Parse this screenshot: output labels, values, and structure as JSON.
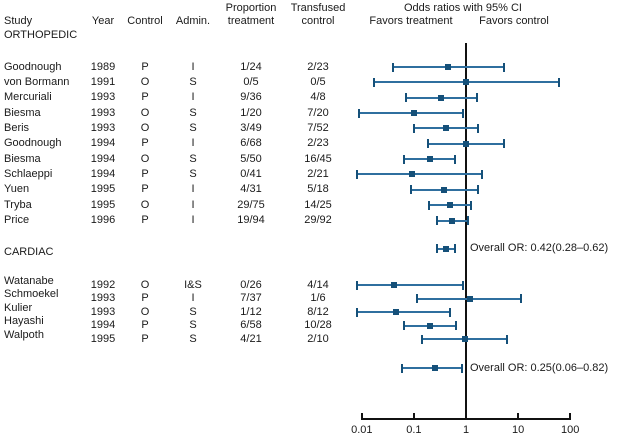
{
  "table_header": {
    "study": "Study",
    "year": "Year",
    "control": "Control",
    "admin": "Admin.",
    "prop_line1": "Proportion",
    "prop_line2": "treatment",
    "transf_line1": "Transfused",
    "transf_line2": "control",
    "or_title": "Odds ratios with 95% CI",
    "favors_left": "Favors treatment",
    "favors_right": "Favors control"
  },
  "colors": {
    "ci_line": "#2f6f9f",
    "marker": "#155079",
    "axis": "#111111",
    "text": "#1a1a1a"
  },
  "chart_data": {
    "type": "scatter",
    "subtype": "forest-plot",
    "title": "Odds ratios with 95% CI",
    "x_axis": {
      "scale": "log",
      "tick_values": [
        0.01,
        0.1,
        1,
        10,
        100
      ],
      "tick_labels": [
        "0.01",
        "0.1",
        "1",
        "10",
        "100"
      ],
      "reference_line": 1,
      "left_label": "Favors treatment",
      "right_label": "Favors control"
    },
    "groups": [
      {
        "label": "ORTHOPEDIC",
        "rows": [
          {
            "study": "Goodnough",
            "year": "1989",
            "control": "P",
            "admin": "I",
            "prop": "1/24",
            "transf": "2/23",
            "or": 0.46,
            "ci": [
              0.039,
              5.4
            ]
          },
          {
            "study": "von Bormann",
            "year": "1991",
            "control": "O",
            "admin": "S",
            "prop": "0/5",
            "transf": "0/5",
            "or": 1.0,
            "ci": [
              0.017,
              60
            ]
          },
          {
            "study": "Mercuriali",
            "year": "1993",
            "control": "P",
            "admin": "I",
            "prop": "9/36",
            "transf": "4/8",
            "or": 0.33,
            "ci": [
              0.069,
              1.62
            ]
          },
          {
            "study": "Biesma",
            "year": "1993",
            "control": "O",
            "admin": "S",
            "prop": "1/20",
            "transf": "7/20",
            "or": 0.1,
            "ci": [
              0.009,
              0.89
            ]
          },
          {
            "study": "Beris",
            "year": "1993",
            "control": "O",
            "admin": "S",
            "prop": "3/49",
            "transf": "7/52",
            "or": 0.42,
            "ci": [
              0.1,
              1.72
            ]
          },
          {
            "study": "Goodnough",
            "year": "1994",
            "control": "P",
            "admin": "I",
            "prop": "6/68",
            "transf": "2/23",
            "or": 1.02,
            "ci": [
              0.19,
              5.4
            ]
          },
          {
            "study": "Biesma",
            "year": "1994",
            "control": "O",
            "admin": "S",
            "prop": "5/50",
            "transf": "16/45",
            "or": 0.2,
            "ci": [
              0.066,
              0.61
            ]
          },
          {
            "study": "Schlaeppi",
            "year": "1994",
            "control": "P",
            "admin": "S",
            "prop": "0/41",
            "transf": "2/21",
            "or": 0.094,
            "ci": [
              0.008,
              2.05
            ]
          },
          {
            "study": "Yuen",
            "year": "1995",
            "control": "P",
            "admin": "I",
            "prop": "4/31",
            "transf": "5/18",
            "or": 0.385,
            "ci": [
              0.088,
              1.68
            ]
          },
          {
            "study": "Tryba",
            "year": "1995",
            "control": "O",
            "admin": "I",
            "prop": "29/75",
            "transf": "14/25",
            "or": 0.495,
            "ci": [
              0.198,
              1.24
            ]
          },
          {
            "study": "Price",
            "year": "1996",
            "control": "P",
            "admin": "I",
            "prop": "19/94",
            "transf": "29/92",
            "or": 0.55,
            "ci": [
              0.28,
              1.07
            ]
          }
        ],
        "overall": {
          "label": "Overall OR: 0.42(0.28–0.62)",
          "or": 0.42,
          "ci": [
            0.28,
            0.62
          ]
        }
      },
      {
        "label": "CARDIAC",
        "rows": [
          {
            "study": "Watanabe",
            "year": "1992",
            "control": "O",
            "admin": "I&S",
            "prop": "0/26",
            "transf": "4/14",
            "or": 0.042,
            "ci": [
              0.008,
              0.89
            ]
          },
          {
            "study": "Schmoekel",
            "year": "1993",
            "control": "P",
            "admin": "I",
            "prop": "7/37",
            "transf": "1/6",
            "or": 1.17,
            "ci": [
              0.117,
              11.6
            ]
          },
          {
            "study": "Kulier",
            "year": "1993",
            "control": "O",
            "admin": "S",
            "prop": "1/12",
            "transf": "8/12",
            "or": 0.045,
            "ci": [
              0.008,
              0.49
            ]
          },
          {
            "study": "Hayashi",
            "year": "1994",
            "control": "P",
            "admin": "S",
            "prop": "6/58",
            "transf": "10/28",
            "or": 0.208,
            "ci": [
              0.066,
              0.65
            ]
          },
          {
            "study": "Walpoth",
            "year": "1995",
            "control": "P",
            "admin": "S",
            "prop": "4/21",
            "transf": "2/10",
            "or": 0.94,
            "ci": [
              0.142,
              6.25
            ]
          }
        ],
        "overall": {
          "label": "Overall OR: 0.25(0.06–0.82)",
          "or": 0.25,
          "ci": [
            0.06,
            0.82
          ]
        }
      }
    ]
  }
}
